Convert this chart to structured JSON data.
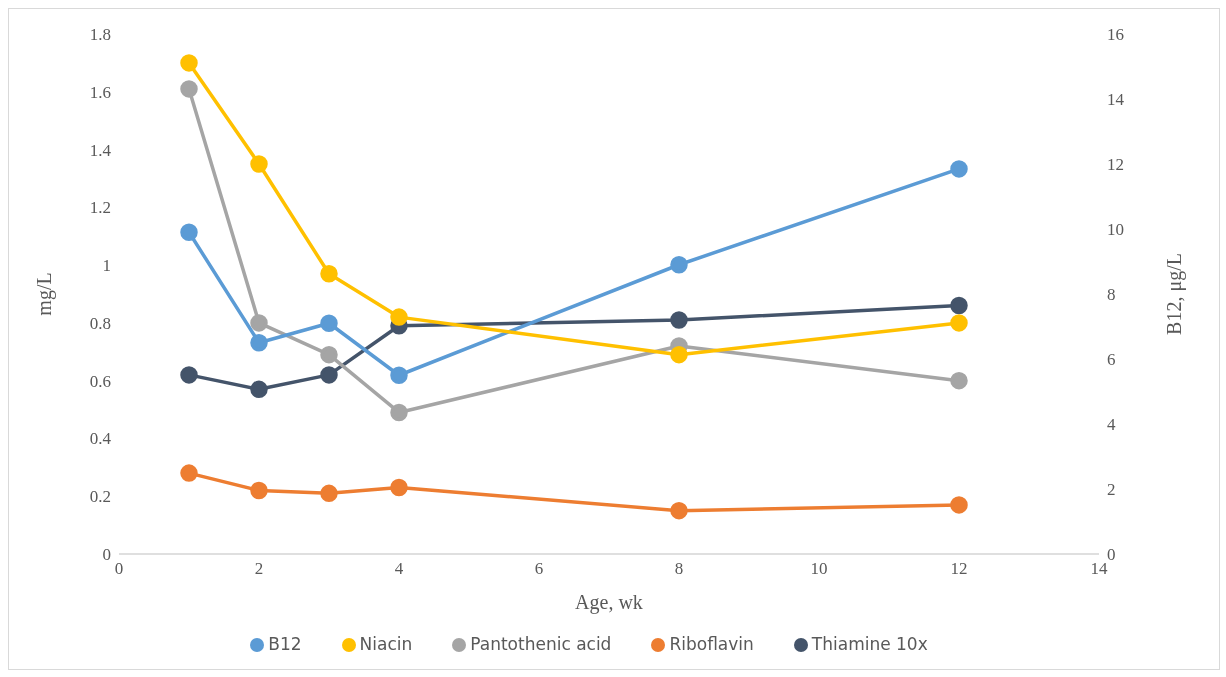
{
  "chart_data": {
    "type": "line",
    "xlabel": "Age, wk",
    "ylabel": "mg/L",
    "y2label": "B12, μg/L",
    "x": [
      1,
      2,
      3,
      4,
      8,
      12
    ],
    "series": [
      {
        "name": "Thiamine 10x",
        "color": "#44546a",
        "values": [
          0.62,
          0.57,
          0.62,
          0.79,
          0.81,
          0.86
        ]
      },
      {
        "name": "Riboflavin",
        "color": "#ed7d31",
        "values": [
          0.28,
          0.22,
          0.21,
          0.23,
          0.15,
          0.17
        ]
      },
      {
        "name": "Pantothenic acid",
        "color": "#a5a5a5",
        "values": [
          1.61,
          0.8,
          0.69,
          0.49,
          0.72,
          0.6
        ]
      },
      {
        "name": "B12",
        "color": "#5b9bd5",
        "axis": "y2",
        "values": [
          9.9,
          6.5,
          7.1,
          5.5,
          8.9,
          11.85
        ]
      },
      {
        "name": "Niacin",
        "color": "#ffc000",
        "values": [
          1.7,
          1.35,
          0.97,
          0.82,
          0.69,
          0.8
        ]
      }
    ],
    "xlim": [
      0,
      14
    ],
    "xticks": [
      0,
      2,
      4,
      6,
      8,
      10,
      12,
      14
    ],
    "ylim": [
      0,
      1.8
    ],
    "yticks": [
      0,
      0.2,
      0.4,
      0.6,
      0.8,
      1,
      1.2,
      1.4,
      1.6,
      1.8
    ],
    "y2lim": [
      0,
      16
    ],
    "y2ticks": [
      0,
      2,
      4,
      6,
      8,
      10,
      12,
      14,
      16
    ],
    "grid": false,
    "legend": "bottom",
    "marker": "circle",
    "line_style": "solid"
  }
}
